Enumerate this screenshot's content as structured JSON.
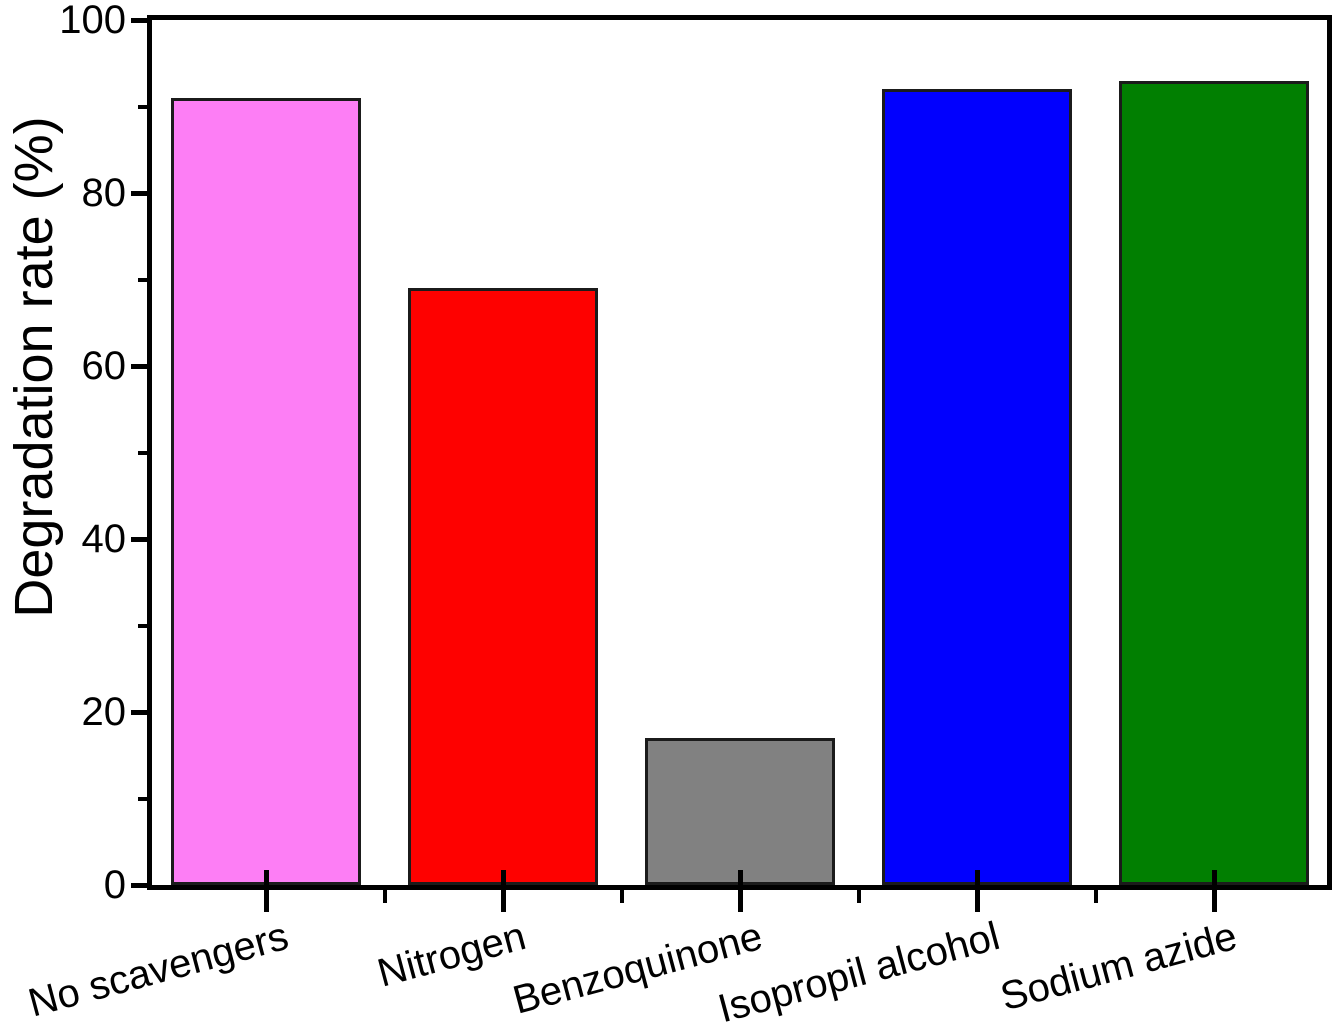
{
  "figure": {
    "background": "#ffffff"
  },
  "chart_data": {
    "type": "bar",
    "title": "",
    "xlabel": "",
    "ylabel": "Degradation rate (%)",
    "categories": [
      "No scavengers",
      "Nitrogen",
      "Benzoquinone",
      "Isopropil alcohol",
      "Sodium azide"
    ],
    "values": [
      91,
      69,
      17,
      92,
      93
    ],
    "bar_colors": [
      "#fd7ef5",
      "#fe0100",
      "#818181",
      "#0100fe",
      "#017f01"
    ],
    "bar_border_color": "#1b1b1b",
    "axis_color": "#000000",
    "ylim": [
      0,
      100
    ],
    "yticks_major": [
      0,
      20,
      40,
      60,
      80,
      100
    ],
    "yticks_minor": [
      10,
      30,
      50,
      70,
      90
    ],
    "xtick_label_rotation_deg": -15,
    "grid": false,
    "legend_visible": false
  }
}
